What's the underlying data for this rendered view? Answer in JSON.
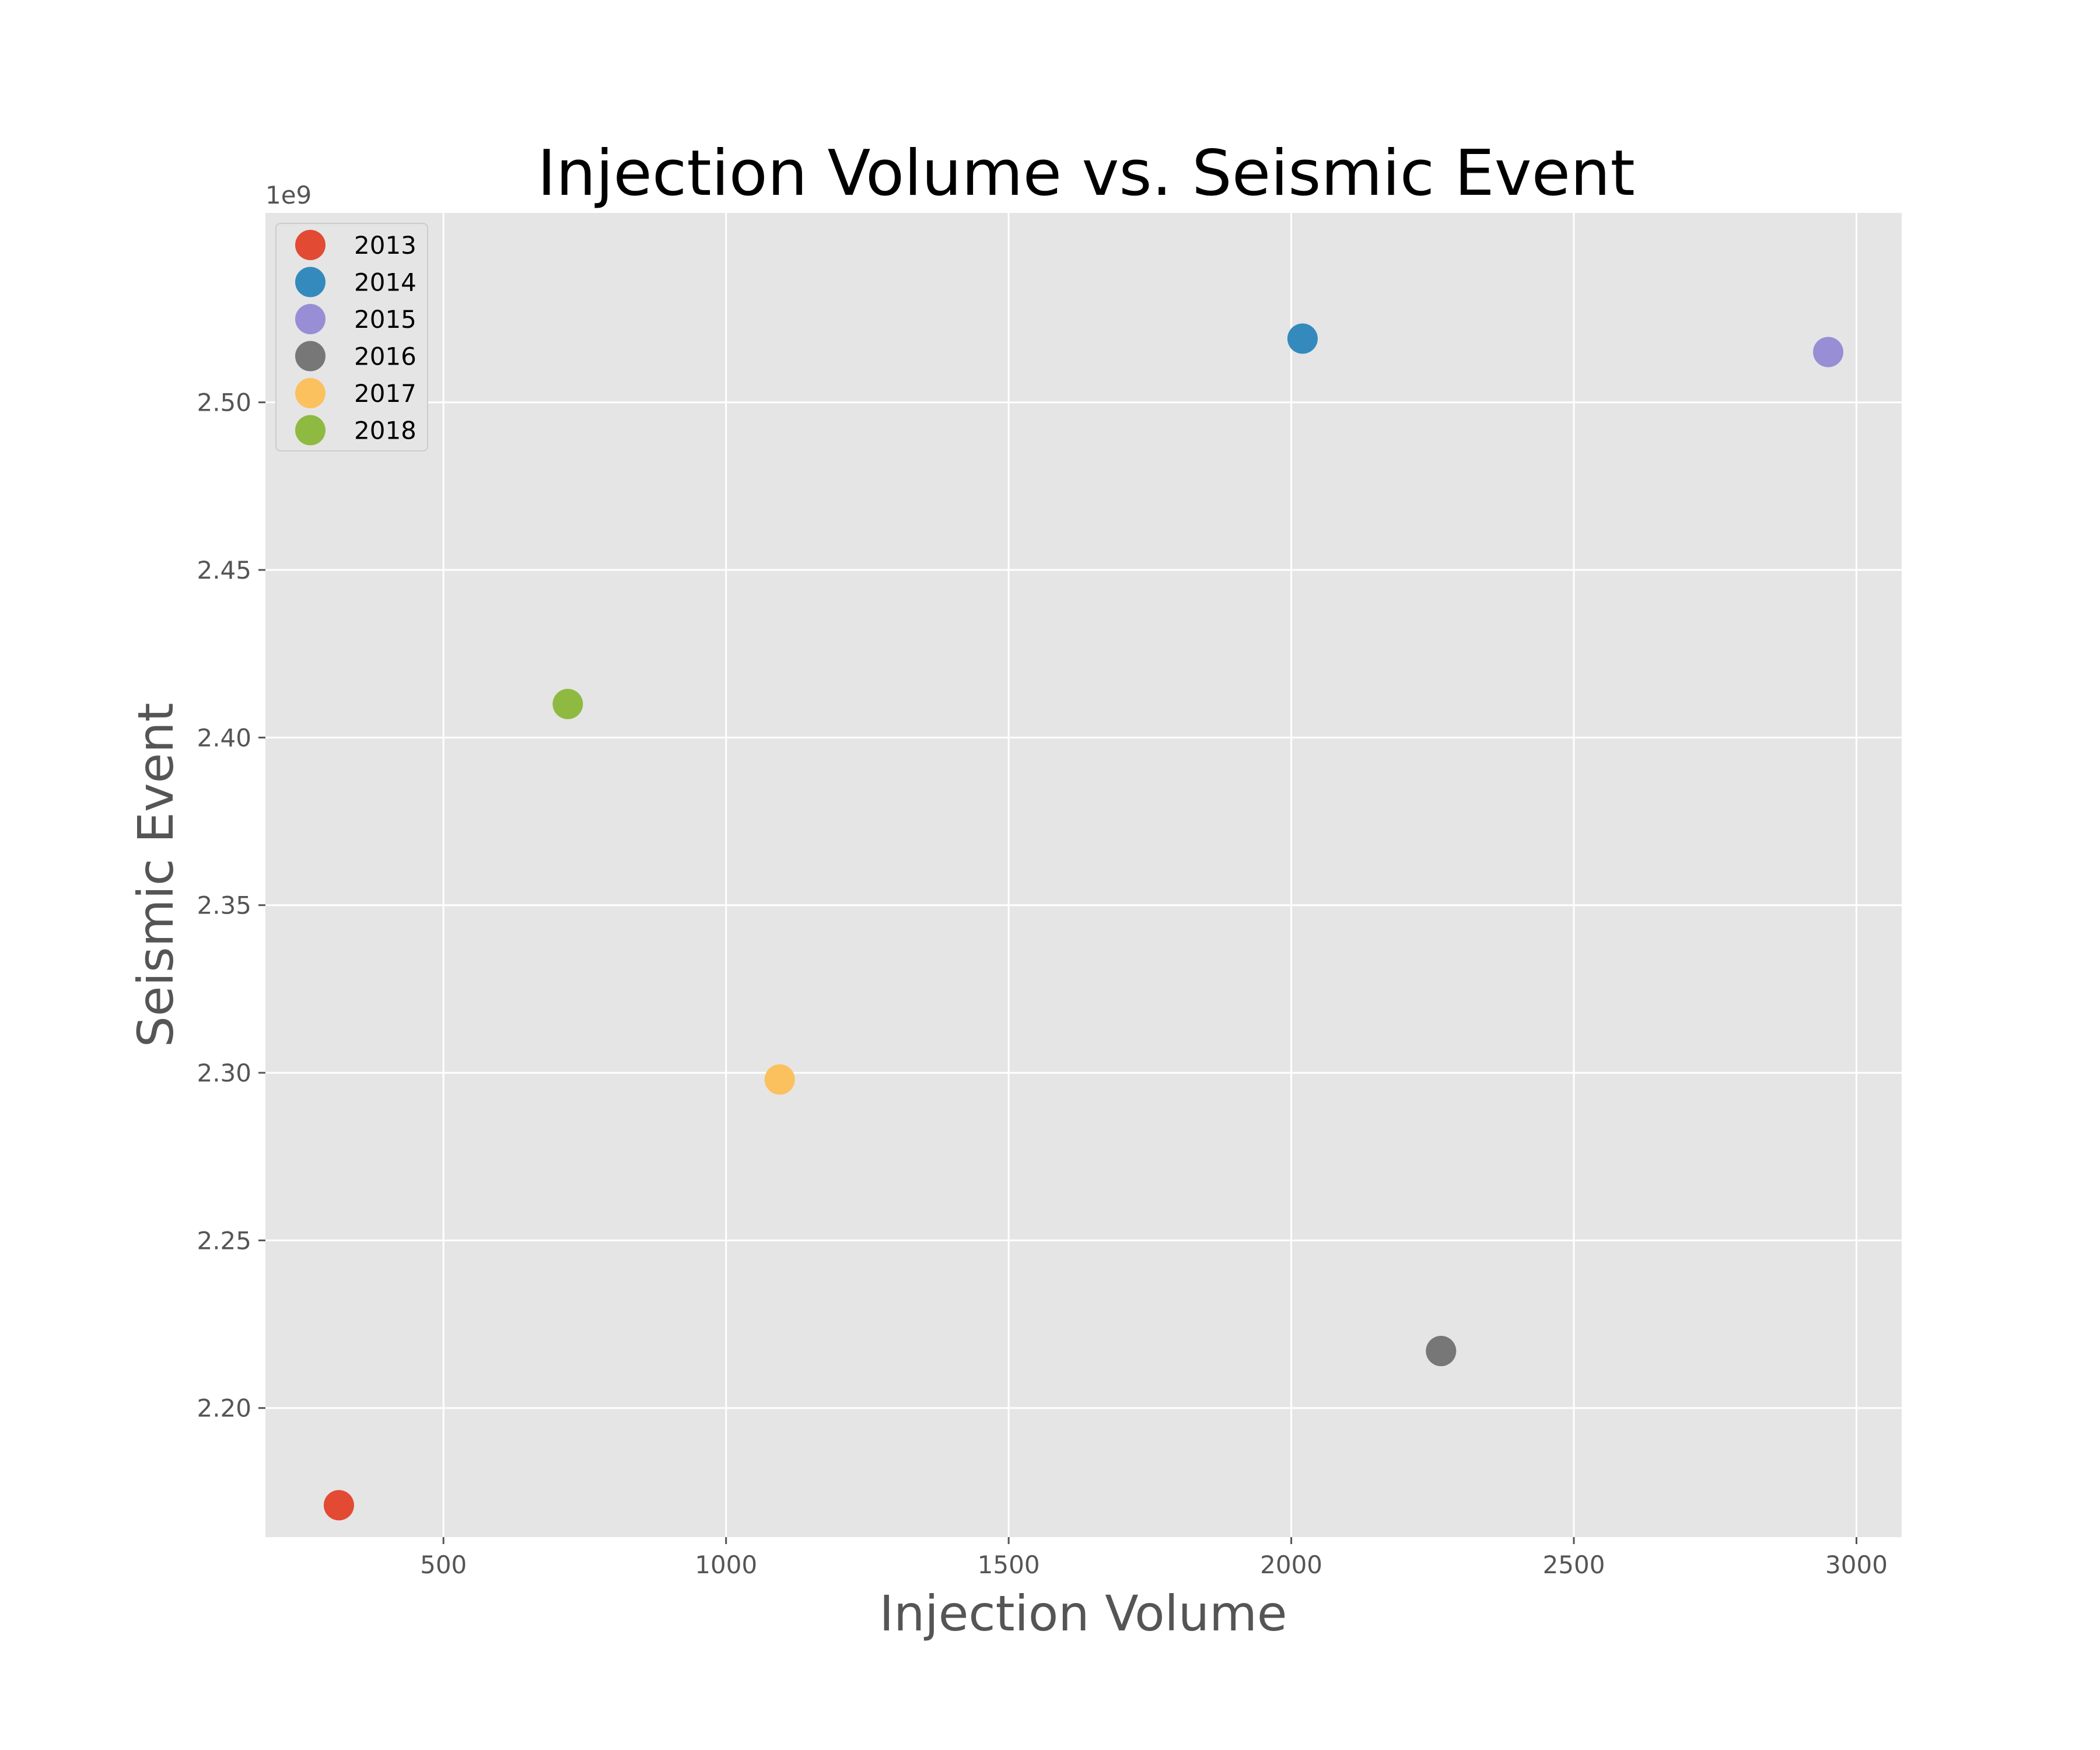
{
  "chart_data": {
    "type": "scatter",
    "title": "Injection Volume vs. Seismic Event",
    "xlabel": "Injection Volume",
    "ylabel": "Seismic Event",
    "y_offset_label": "1e9",
    "xlim": [
      185,
      3080
    ],
    "ylim": [
      2.1615,
      2.5565
    ],
    "x_ticks": [
      500,
      1000,
      1500,
      2000,
      2500,
      3000
    ],
    "x_tick_labels": [
      "500",
      "1000",
      "1500",
      "2000",
      "2500",
      "3000"
    ],
    "y_ticks": [
      2.2,
      2.25,
      2.3,
      2.35,
      2.4,
      2.45,
      2.5
    ],
    "y_tick_labels": [
      "2.20",
      "2.25",
      "2.30",
      "2.35",
      "2.40",
      "2.45",
      "2.50"
    ],
    "grid": true,
    "legend_position": "top-left",
    "series": [
      {
        "name": "2013",
        "color": "#E24A33",
        "x": 315,
        "y": 2.171
      },
      {
        "name": "2014",
        "color": "#348ABD",
        "x": 2020,
        "y": 2.519
      },
      {
        "name": "2015",
        "color": "#988ED5",
        "x": 2950,
        "y": 2.515
      },
      {
        "name": "2016",
        "color": "#777777",
        "x": 2265,
        "y": 2.217
      },
      {
        "name": "2017",
        "color": "#FBC15E",
        "x": 1095,
        "y": 2.298
      },
      {
        "name": "2018",
        "color": "#8EBA42",
        "x": 720,
        "y": 2.41
      }
    ]
  }
}
